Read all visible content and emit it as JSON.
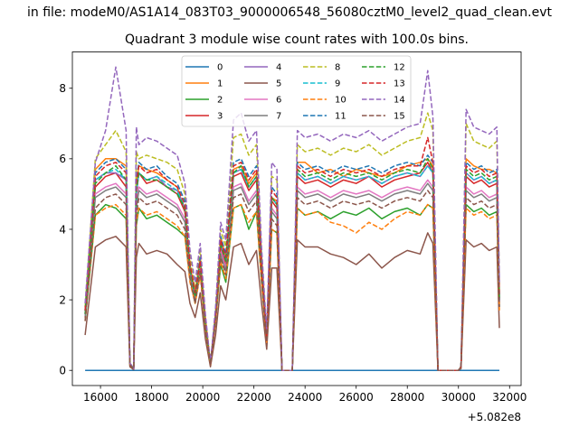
{
  "header": {
    "suptitle": "in file: modeM0/AS1A14_083T03_9000006548_56080cztM0_level2_quad_clean.evt",
    "title": "Quadrant 3 module wise count rates with 100.0s bins."
  },
  "chart_data": {
    "type": "line",
    "title": "Quadrant 3 module wise count rates with 100.0s bins.",
    "xlabel": "",
    "ylabel": "",
    "x_offset_label": "+5.082e8",
    "xlim": [
      14900,
      32450
    ],
    "ylim": [
      -0.43,
      9.03
    ],
    "xticks": [
      16000,
      18000,
      20000,
      22000,
      24000,
      26000,
      28000,
      30000,
      32000
    ],
    "xtick_labels": [
      "16000",
      "18000",
      "20000",
      "22000",
      "24000",
      "26000",
      "28000",
      "30000",
      "32000"
    ],
    "yticks": [
      0,
      2,
      4,
      6,
      8
    ],
    "ytick_labels": [
      "0",
      "2",
      "4",
      "6",
      "8"
    ],
    "grid": false,
    "legend_position": "upper-center",
    "legend_columns": 4,
    "series_colors": [
      "#1f77b4",
      "#ff7f0e",
      "#2ca02c",
      "#d62728",
      "#9467bd",
      "#8c564b",
      "#e377c2",
      "#7f7f7f",
      "#bcbd22",
      "#17becf",
      "#ff7f0e",
      "#1f77b4",
      "#2ca02c",
      "#d62728",
      "#9467bd",
      "#8c564b"
    ],
    "series_styles": [
      "solid",
      "solid",
      "solid",
      "solid",
      "solid",
      "solid",
      "solid",
      "solid",
      "dashed",
      "dashed",
      "dashed",
      "dashed",
      "dashed",
      "dashed",
      "dashed",
      "dashed"
    ],
    "x": [
      15400,
      15800,
      16200,
      16600,
      17000,
      17150,
      17300,
      17400,
      17500,
      17800,
      18200,
      18600,
      19000,
      19300,
      19500,
      19700,
      19900,
      20100,
      20300,
      20500,
      20700,
      20900,
      21200,
      21500,
      21800,
      22100,
      22300,
      22500,
      22700,
      22900,
      23100,
      23300,
      23500,
      23700,
      24000,
      24500,
      25000,
      25500,
      26000,
      26500,
      27000,
      27500,
      28000,
      28500,
      28800,
      29000,
      29200,
      29400,
      29700,
      30000,
      30100,
      30300,
      30600,
      30900,
      31200,
      31500,
      31600
    ],
    "series": [
      {
        "name": "0",
        "values": [
          0,
          0,
          0,
          0,
          0,
          0,
          0,
          0,
          0,
          0,
          0,
          0,
          0,
          0,
          0,
          0,
          0,
          0,
          0,
          0,
          0,
          0,
          0,
          0,
          0,
          0,
          0,
          0,
          0,
          0,
          0,
          0,
          0,
          0,
          0,
          0,
          0,
          0,
          0,
          0,
          0,
          0,
          0,
          0,
          0,
          0,
          0,
          0,
          0,
          0,
          0,
          0,
          0,
          0,
          0,
          0,
          0
        ]
      },
      {
        "name": "1",
        "values": [
          1.6,
          5.7,
          6.0,
          6.0,
          5.8,
          0.2,
          0.05,
          5.3,
          5.8,
          5.7,
          5.6,
          5.4,
          5.2,
          4.5,
          3.0,
          2.2,
          3.2,
          1.5,
          0.2,
          1.6,
          3.8,
          3.2,
          5.7,
          5.8,
          5.3,
          5.6,
          3.0,
          0.9,
          4.9,
          4.8,
          0,
          0,
          0,
          5.9,
          5.9,
          5.6,
          5.7,
          5.5,
          5.7,
          5.6,
          5.5,
          5.6,
          5.8,
          5.9,
          6.0,
          5.8,
          0,
          0,
          0,
          0,
          0.1,
          6.0,
          5.8,
          5.7,
          5.7,
          5.6,
          2.2
        ]
      },
      {
        "name": "2",
        "values": [
          1.4,
          4.4,
          4.7,
          4.6,
          4.3,
          0.15,
          0.05,
          4.1,
          4.6,
          4.3,
          4.4,
          4.2,
          4.0,
          3.8,
          2.6,
          1.9,
          2.8,
          1.2,
          0.15,
          1.4,
          3.0,
          2.5,
          4.6,
          4.7,
          4.0,
          4.5,
          2.5,
          0.8,
          4.0,
          3.9,
          0,
          0,
          0,
          4.6,
          4.4,
          4.5,
          4.3,
          4.5,
          4.4,
          4.6,
          4.3,
          4.5,
          4.6,
          4.4,
          4.7,
          4.6,
          0,
          0,
          0,
          0,
          0.1,
          4.7,
          4.5,
          4.6,
          4.4,
          4.5,
          1.8
        ]
      },
      {
        "name": "3",
        "values": [
          1.7,
          5.2,
          5.5,
          5.6,
          5.2,
          0.2,
          0.05,
          5.0,
          5.6,
          5.3,
          5.4,
          5.2,
          5.0,
          4.5,
          2.8,
          2.1,
          3.0,
          1.3,
          0.2,
          1.5,
          3.5,
          3.0,
          5.5,
          5.6,
          5.1,
          5.4,
          2.9,
          0.9,
          4.8,
          4.6,
          0,
          0,
          0,
          5.5,
          5.3,
          5.4,
          5.2,
          5.4,
          5.3,
          5.5,
          5.2,
          5.4,
          5.5,
          5.6,
          5.9,
          5.6,
          0,
          0,
          0,
          0,
          0.1,
          5.5,
          5.3,
          5.4,
          5.2,
          5.3,
          2.0
        ]
      },
      {
        "name": "4",
        "values": [
          1.6,
          5.4,
          5.6,
          5.6,
          5.4,
          0.2,
          0.05,
          5.0,
          5.6,
          5.4,
          5.5,
          5.2,
          5.1,
          4.6,
          2.9,
          2.1,
          3.1,
          1.3,
          0.2,
          1.6,
          3.6,
          3.1,
          5.6,
          5.7,
          5.2,
          5.5,
          2.9,
          0.9,
          4.9,
          4.7,
          0,
          0,
          0,
          5.6,
          5.4,
          5.5,
          5.3,
          5.5,
          5.4,
          5.5,
          5.3,
          5.5,
          5.6,
          5.5,
          5.8,
          5.6,
          0,
          0,
          0,
          0,
          0.1,
          5.6,
          5.4,
          5.5,
          5.3,
          5.4,
          2.0
        ]
      },
      {
        "name": "5",
        "values": [
          1.0,
          3.5,
          3.7,
          3.8,
          3.5,
          0.1,
          0.02,
          3.2,
          3.6,
          3.3,
          3.4,
          3.3,
          3.0,
          2.8,
          1.9,
          1.5,
          2.2,
          0.9,
          0.1,
          1.0,
          2.4,
          2.0,
          3.5,
          3.6,
          3.0,
          3.4,
          1.9,
          0.6,
          2.9,
          2.9,
          0,
          0,
          0,
          3.7,
          3.5,
          3.5,
          3.3,
          3.2,
          3.0,
          3.3,
          2.9,
          3.2,
          3.4,
          3.3,
          3.9,
          3.6,
          0,
          0,
          0,
          0,
          0.05,
          3.7,
          3.5,
          3.6,
          3.4,
          3.5,
          1.2
        ]
      },
      {
        "name": "6",
        "values": [
          1.5,
          5.0,
          5.2,
          5.3,
          5.0,
          0.2,
          0.05,
          4.7,
          5.2,
          5.0,
          5.1,
          4.9,
          4.7,
          4.3,
          2.7,
          2.0,
          2.9,
          1.2,
          0.2,
          1.5,
          3.4,
          2.9,
          5.2,
          5.3,
          4.8,
          5.1,
          2.8,
          0.8,
          4.6,
          4.4,
          0,
          0,
          0,
          5.2,
          5.0,
          5.1,
          4.9,
          5.1,
          5.0,
          5.1,
          4.9,
          5.1,
          5.2,
          5.1,
          5.4,
          5.2,
          0,
          0,
          0,
          0,
          0.1,
          5.2,
          5.0,
          5.1,
          4.9,
          5.0,
          1.9
        ]
      },
      {
        "name": "7",
        "values": [
          1.5,
          4.9,
          5.1,
          5.2,
          4.9,
          0.2,
          0.05,
          4.6,
          5.1,
          4.9,
          5.0,
          4.8,
          4.6,
          4.2,
          2.7,
          2.0,
          2.8,
          1.2,
          0.2,
          1.5,
          3.3,
          2.8,
          5.1,
          5.2,
          4.7,
          5.0,
          2.7,
          0.8,
          4.5,
          4.3,
          0,
          0,
          0,
          5.1,
          4.9,
          5.0,
          4.8,
          5.0,
          4.9,
          5.0,
          4.8,
          5.0,
          5.1,
          5.0,
          5.3,
          5.1,
          0,
          0,
          0,
          0,
          0.1,
          5.1,
          4.9,
          5.0,
          4.8,
          4.9,
          1.9
        ]
      },
      {
        "name": "8",
        "values": [
          1.8,
          6.0,
          6.4,
          6.8,
          6.2,
          0.2,
          0.05,
          6.2,
          6.0,
          6.1,
          6.0,
          5.9,
          5.7,
          5.0,
          3.2,
          2.3,
          3.4,
          1.5,
          0.2,
          1.7,
          4.0,
          3.5,
          6.6,
          6.7,
          6.1,
          6.4,
          3.3,
          1.0,
          5.5,
          5.4,
          0,
          0,
          0,
          6.4,
          6.2,
          6.3,
          6.1,
          6.3,
          6.2,
          6.4,
          6.1,
          6.3,
          6.5,
          6.6,
          7.3,
          6.8,
          0,
          0,
          0,
          0,
          0.1,
          7.0,
          6.5,
          6.4,
          6.3,
          6.5,
          2.4
        ]
      },
      {
        "name": "9",
        "values": [
          1.6,
          5.4,
          5.6,
          5.7,
          5.4,
          0.2,
          0.05,
          5.1,
          5.6,
          5.4,
          5.5,
          5.3,
          5.1,
          4.6,
          2.9,
          2.1,
          3.1,
          1.3,
          0.2,
          1.6,
          3.6,
          3.1,
          5.6,
          5.7,
          5.2,
          5.5,
          2.9,
          0.9,
          4.9,
          4.7,
          0,
          0,
          0,
          5.6,
          5.4,
          5.5,
          5.3,
          5.5,
          5.4,
          5.5,
          5.3,
          5.5,
          5.6,
          5.5,
          5.8,
          5.6,
          0,
          0,
          0,
          0,
          0.1,
          5.6,
          5.4,
          5.5,
          5.3,
          5.4,
          2.0
        ]
      },
      {
        "name": "10",
        "values": [
          1.4,
          4.4,
          4.6,
          4.7,
          4.4,
          0.15,
          0.05,
          4.2,
          4.6,
          4.4,
          4.5,
          4.3,
          4.1,
          3.8,
          2.5,
          1.9,
          2.7,
          1.2,
          0.15,
          1.4,
          3.1,
          2.6,
          4.6,
          4.7,
          4.2,
          4.5,
          2.5,
          0.8,
          4.0,
          3.9,
          0,
          0,
          0,
          4.6,
          4.4,
          4.5,
          4.2,
          4.1,
          3.9,
          4.2,
          4.0,
          4.3,
          4.5,
          4.4,
          4.7,
          4.6,
          0,
          0,
          0,
          0,
          0.1,
          4.6,
          4.4,
          4.5,
          4.3,
          4.4,
          1.7
        ]
      },
      {
        "name": "11",
        "values": [
          1.7,
          5.6,
          5.9,
          6.0,
          5.7,
          0.2,
          0.05,
          5.4,
          5.9,
          5.7,
          5.8,
          5.5,
          5.3,
          4.8,
          3.0,
          2.2,
          3.2,
          1.4,
          0.2,
          1.6,
          3.8,
          3.3,
          5.9,
          6.0,
          5.5,
          5.8,
          3.1,
          0.9,
          5.2,
          5.0,
          0,
          0,
          0,
          5.9,
          5.7,
          5.8,
          5.6,
          5.8,
          5.7,
          5.8,
          5.6,
          5.8,
          5.9,
          5.8,
          6.1,
          5.9,
          0,
          0,
          0,
          0,
          0.1,
          5.9,
          5.7,
          5.8,
          5.6,
          5.7,
          2.1
        ]
      },
      {
        "name": "12",
        "values": [
          1.6,
          5.3,
          5.6,
          5.8,
          5.4,
          0.2,
          0.05,
          5.1,
          5.6,
          5.4,
          5.4,
          5.2,
          5.0,
          4.6,
          2.9,
          2.1,
          3.1,
          1.3,
          0.2,
          1.6,
          3.6,
          3.1,
          5.6,
          5.8,
          5.2,
          5.5,
          2.9,
          0.9,
          4.9,
          4.7,
          0,
          0,
          0,
          5.7,
          5.5,
          5.6,
          5.4,
          5.6,
          5.5,
          5.6,
          5.4,
          5.6,
          5.7,
          5.6,
          6.0,
          5.7,
          0,
          0,
          0,
          0,
          0.1,
          5.7,
          5.5,
          5.6,
          5.4,
          5.5,
          2.0
        ]
      },
      {
        "name": "13",
        "values": [
          1.7,
          5.5,
          5.8,
          5.9,
          5.6,
          0.2,
          0.05,
          5.3,
          5.8,
          5.6,
          5.7,
          5.4,
          5.2,
          4.7,
          3.0,
          2.2,
          3.1,
          1.4,
          0.2,
          1.6,
          3.7,
          3.2,
          5.8,
          5.9,
          5.4,
          5.7,
          3.0,
          0.9,
          5.1,
          4.9,
          0,
          0,
          0,
          5.8,
          5.6,
          5.7,
          5.5,
          5.7,
          5.6,
          5.7,
          5.5,
          5.7,
          5.8,
          5.8,
          6.6,
          5.9,
          0,
          0,
          0,
          0,
          0.1,
          5.8,
          5.6,
          5.7,
          5.5,
          5.6,
          2.1
        ]
      },
      {
        "name": "14",
        "values": [
          1.9,
          5.9,
          6.8,
          8.6,
          6.8,
          0.2,
          0.05,
          6.9,
          6.4,
          6.6,
          6.5,
          6.3,
          6.1,
          5.3,
          3.4,
          2.5,
          3.6,
          1.6,
          0.2,
          1.8,
          4.2,
          3.7,
          7.1,
          7.3,
          6.5,
          6.8,
          3.5,
          1.1,
          5.9,
          5.7,
          0,
          0,
          0,
          6.8,
          6.6,
          6.7,
          6.5,
          6.7,
          6.6,
          6.8,
          6.5,
          6.7,
          6.9,
          7.0,
          8.5,
          7.2,
          0,
          0,
          0,
          0,
          0.1,
          7.4,
          6.9,
          6.8,
          6.7,
          6.9,
          2.5
        ]
      },
      {
        "name": "15",
        "values": [
          1.4,
          4.6,
          4.9,
          5.0,
          4.7,
          0.15,
          0.05,
          4.4,
          4.9,
          4.7,
          4.8,
          4.6,
          4.4,
          4.0,
          2.6,
          1.9,
          2.8,
          1.2,
          0.15,
          1.4,
          3.2,
          2.7,
          4.9,
          5.0,
          4.5,
          4.8,
          2.6,
          0.8,
          4.3,
          4.1,
          0,
          0,
          0,
          4.9,
          4.7,
          4.8,
          4.6,
          4.8,
          4.7,
          4.8,
          4.6,
          4.8,
          4.9,
          4.8,
          5.1,
          4.9,
          0,
          0,
          0,
          0,
          0.1,
          4.9,
          4.7,
          4.8,
          4.6,
          4.7,
          1.8
        ]
      }
    ]
  }
}
